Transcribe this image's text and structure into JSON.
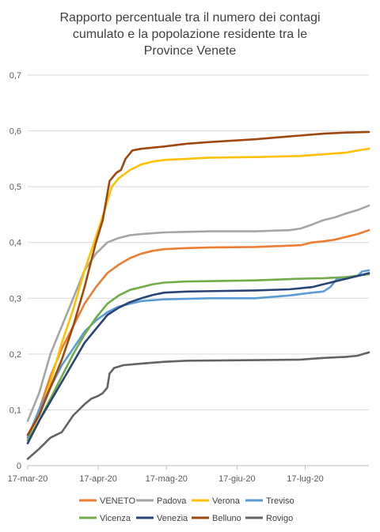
{
  "chart_data": {
    "type": "line",
    "title_lines": [
      "Rapporto percentuale tra il numero dei contagi",
      "cumulato e la popolazione residente tra le",
      "Province Venete"
    ],
    "xlabel": "",
    "ylabel": "",
    "ylim": [
      0,
      0.7
    ],
    "yticks": [
      "0",
      "0,1",
      "0,2",
      "0,3",
      "0,4",
      "0,5",
      "0,6",
      "0,7"
    ],
    "xticks": [
      "17-mar-20",
      "17-apr-20",
      "17-mag-20",
      "17-giu-20",
      "17-lug-20"
    ],
    "xtick_days": [
      0,
      31,
      61,
      92,
      122
    ],
    "x_end_day": 150,
    "grid": "horizontal",
    "legend_position": "bottom",
    "series": [
      {
        "name": "VENETO",
        "color": "#ED7D31",
        "points": [
          [
            0,
            0.05
          ],
          [
            5,
            0.1
          ],
          [
            10,
            0.16
          ],
          [
            15,
            0.21
          ],
          [
            20,
            0.25
          ],
          [
            25,
            0.29
          ],
          [
            30,
            0.32
          ],
          [
            35,
            0.345
          ],
          [
            40,
            0.36
          ],
          [
            45,
            0.372
          ],
          [
            50,
            0.38
          ],
          [
            55,
            0.385
          ],
          [
            60,
            0.388
          ],
          [
            70,
            0.39
          ],
          [
            80,
            0.391
          ],
          [
            100,
            0.392
          ],
          [
            120,
            0.395
          ],
          [
            125,
            0.4
          ],
          [
            130,
            0.402
          ],
          [
            135,
            0.405
          ],
          [
            140,
            0.41
          ],
          [
            145,
            0.415
          ],
          [
            150,
            0.422
          ]
        ]
      },
      {
        "name": "Padova",
        "color": "#A5A5A5",
        "points": [
          [
            0,
            0.08
          ],
          [
            5,
            0.13
          ],
          [
            10,
            0.2
          ],
          [
            15,
            0.25
          ],
          [
            20,
            0.3
          ],
          [
            25,
            0.35
          ],
          [
            30,
            0.38
          ],
          [
            35,
            0.4
          ],
          [
            40,
            0.408
          ],
          [
            45,
            0.413
          ],
          [
            50,
            0.415
          ],
          [
            60,
            0.418
          ],
          [
            80,
            0.42
          ],
          [
            100,
            0.42
          ],
          [
            115,
            0.422
          ],
          [
            120,
            0.425
          ],
          [
            125,
            0.432
          ],
          [
            130,
            0.44
          ],
          [
            135,
            0.445
          ],
          [
            140,
            0.452
          ],
          [
            145,
            0.458
          ],
          [
            150,
            0.466
          ]
        ]
      },
      {
        "name": "Verona",
        "color": "#FFC000",
        "points": [
          [
            0,
            0.05
          ],
          [
            5,
            0.09
          ],
          [
            10,
            0.15
          ],
          [
            15,
            0.22
          ],
          [
            20,
            0.28
          ],
          [
            25,
            0.35
          ],
          [
            30,
            0.41
          ],
          [
            34,
            0.46
          ],
          [
            37,
            0.5
          ],
          [
            40,
            0.515
          ],
          [
            45,
            0.53
          ],
          [
            50,
            0.54
          ],
          [
            55,
            0.545
          ],
          [
            60,
            0.548
          ],
          [
            70,
            0.55
          ],
          [
            80,
            0.552
          ],
          [
            100,
            0.553
          ],
          [
            120,
            0.555
          ],
          [
            130,
            0.558
          ],
          [
            140,
            0.561
          ],
          [
            145,
            0.565
          ],
          [
            150,
            0.568
          ]
        ]
      },
      {
        "name": "Treviso",
        "color": "#5B9BD5",
        "points": [
          [
            0,
            0.05
          ],
          [
            5,
            0.1
          ],
          [
            10,
            0.14
          ],
          [
            15,
            0.18
          ],
          [
            20,
            0.21
          ],
          [
            25,
            0.24
          ],
          [
            30,
            0.26
          ],
          [
            35,
            0.275
          ],
          [
            40,
            0.285
          ],
          [
            45,
            0.29
          ],
          [
            50,
            0.295
          ],
          [
            60,
            0.298
          ],
          [
            80,
            0.3
          ],
          [
            100,
            0.3
          ],
          [
            115,
            0.305
          ],
          [
            125,
            0.31
          ],
          [
            130,
            0.312
          ],
          [
            133,
            0.32
          ],
          [
            136,
            0.335
          ],
          [
            140,
            0.338
          ],
          [
            145,
            0.34
          ],
          [
            147,
            0.348
          ],
          [
            150,
            0.35
          ]
        ]
      },
      {
        "name": "Vicenza",
        "color": "#70AD47",
        "points": [
          [
            0,
            0.045
          ],
          [
            5,
            0.08
          ],
          [
            10,
            0.12
          ],
          [
            15,
            0.16
          ],
          [
            20,
            0.2
          ],
          [
            25,
            0.235
          ],
          [
            30,
            0.265
          ],
          [
            35,
            0.29
          ],
          [
            40,
            0.305
          ],
          [
            45,
            0.315
          ],
          [
            50,
            0.32
          ],
          [
            55,
            0.325
          ],
          [
            60,
            0.328
          ],
          [
            70,
            0.33
          ],
          [
            100,
            0.332
          ],
          [
            120,
            0.335
          ],
          [
            130,
            0.336
          ],
          [
            140,
            0.338
          ],
          [
            150,
            0.343
          ]
        ]
      },
      {
        "name": "Venezia",
        "color": "#264478",
        "points": [
          [
            0,
            0.04
          ],
          [
            5,
            0.08
          ],
          [
            10,
            0.115
          ],
          [
            15,
            0.15
          ],
          [
            20,
            0.185
          ],
          [
            25,
            0.22
          ],
          [
            30,
            0.245
          ],
          [
            35,
            0.27
          ],
          [
            40,
            0.283
          ],
          [
            45,
            0.293
          ],
          [
            50,
            0.3
          ],
          [
            55,
            0.306
          ],
          [
            60,
            0.31
          ],
          [
            70,
            0.312
          ],
          [
            100,
            0.314
          ],
          [
            115,
            0.316
          ],
          [
            125,
            0.32
          ],
          [
            130,
            0.325
          ],
          [
            135,
            0.33
          ],
          [
            140,
            0.335
          ],
          [
            145,
            0.34
          ],
          [
            150,
            0.345
          ]
        ]
      },
      {
        "name": "Belluno",
        "color": "#9E480E",
        "points": [
          [
            0,
            0.055
          ],
          [
            5,
            0.09
          ],
          [
            10,
            0.14
          ],
          [
            15,
            0.19
          ],
          [
            20,
            0.25
          ],
          [
            25,
            0.32
          ],
          [
            30,
            0.4
          ],
          [
            33,
            0.44
          ],
          [
            36,
            0.51
          ],
          [
            39,
            0.525
          ],
          [
            41,
            0.53
          ],
          [
            43,
            0.55
          ],
          [
            46,
            0.565
          ],
          [
            50,
            0.568
          ],
          [
            60,
            0.572
          ],
          [
            70,
            0.577
          ],
          [
            80,
            0.58
          ],
          [
            100,
            0.585
          ],
          [
            115,
            0.59
          ],
          [
            130,
            0.595
          ],
          [
            140,
            0.597
          ],
          [
            150,
            0.598
          ]
        ]
      },
      {
        "name": "Rovigo",
        "color": "#636363",
        "points": [
          [
            0,
            0.012
          ],
          [
            5,
            0.03
          ],
          [
            10,
            0.05
          ],
          [
            15,
            0.06
          ],
          [
            20,
            0.09
          ],
          [
            25,
            0.11
          ],
          [
            28,
            0.12
          ],
          [
            31,
            0.125
          ],
          [
            33,
            0.13
          ],
          [
            35,
            0.14
          ],
          [
            36,
            0.165
          ],
          [
            38,
            0.175
          ],
          [
            42,
            0.18
          ],
          [
            50,
            0.183
          ],
          [
            60,
            0.186
          ],
          [
            70,
            0.188
          ],
          [
            100,
            0.189
          ],
          [
            120,
            0.19
          ],
          [
            130,
            0.193
          ],
          [
            140,
            0.195
          ],
          [
            145,
            0.197
          ],
          [
            150,
            0.203
          ]
        ]
      }
    ]
  }
}
